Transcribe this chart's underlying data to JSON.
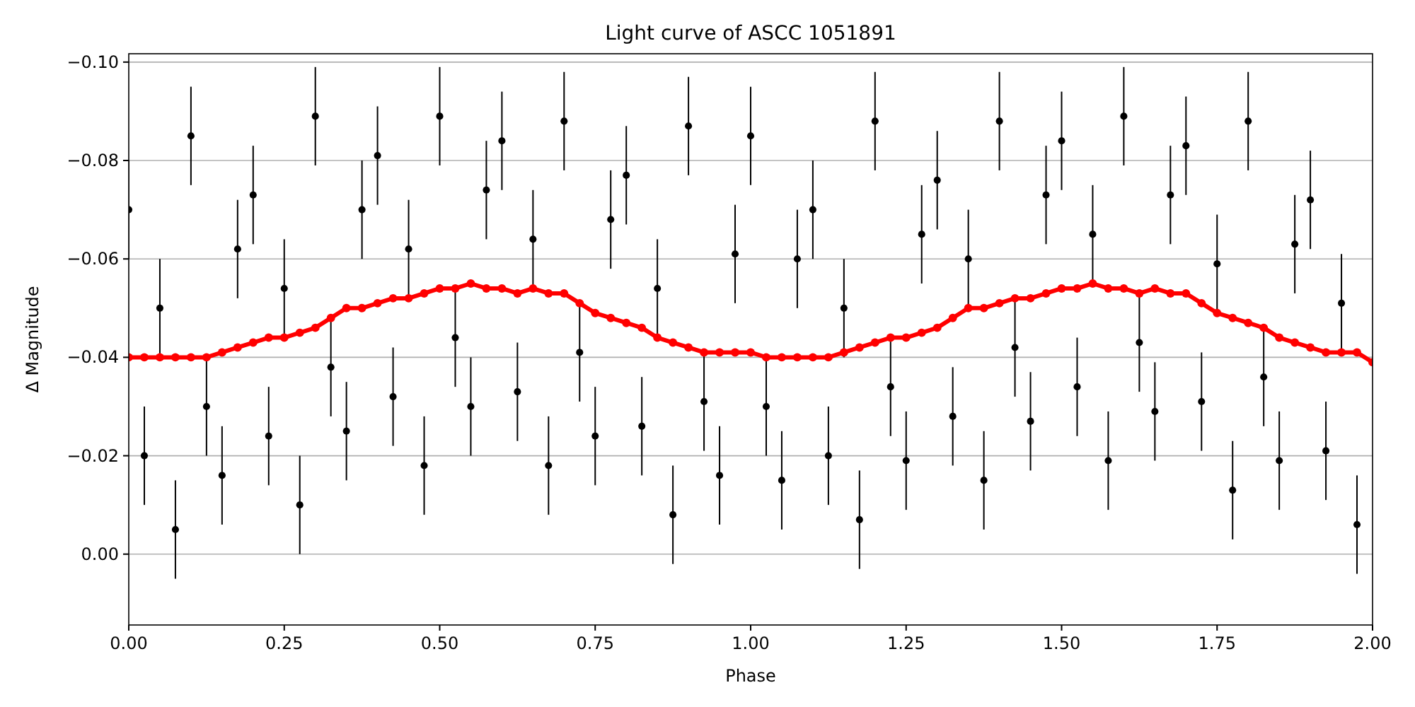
{
  "chart_data": {
    "type": "scatter",
    "title": "Light curve of ASCC 1051891",
    "xlabel": "Phase",
    "ylabel": "Δ Magnitude",
    "xlim": [
      0,
      2
    ],
    "ylim": [
      0.0144,
      -0.1017
    ],
    "xticks": [
      {
        "value": 0,
        "label": "0.00"
      },
      {
        "value": 0.25,
        "label": "0.25"
      },
      {
        "value": 0.5,
        "label": "0.50"
      },
      {
        "value": 0.75,
        "label": "0.75"
      },
      {
        "value": 1,
        "label": "1.00"
      },
      {
        "value": 1.25,
        "label": "1.25"
      },
      {
        "value": 1.5,
        "label": "1.50"
      },
      {
        "value": 1.75,
        "label": "1.75"
      },
      {
        "value": 2,
        "label": "2.00"
      }
    ],
    "yticks": [
      {
        "value": -0.1,
        "label": "−0.10"
      },
      {
        "value": -0.08,
        "label": "−0.08"
      },
      {
        "value": -0.06,
        "label": "−0.06"
      },
      {
        "value": -0.04,
        "label": "−0.04"
      },
      {
        "value": -0.02,
        "label": "−0.02"
      },
      {
        "value": 0,
        "label": "0.00"
      }
    ],
    "grid": "y",
    "series": [
      {
        "color": "#000000",
        "marker": "circle",
        "x": [
          0,
          0.025,
          0.05,
          0.075,
          0.1,
          0.125,
          0.15,
          0.175,
          0.2,
          0.225,
          0.25,
          0.275,
          0.3,
          0.325,
          0.35,
          0.375,
          0.4,
          0.425,
          0.45,
          0.475,
          0.5,
          0.525,
          0.55,
          0.575,
          0.6,
          0.625,
          0.65,
          0.675,
          0.7,
          0.725,
          0.75,
          0.775,
          0.8,
          0.825,
          0.85,
          0.875,
          0.9,
          0.925,
          0.95,
          0.975,
          1,
          1.025,
          1.05,
          1.075,
          1.1,
          1.125,
          1.15,
          1.175,
          1.2,
          1.225,
          1.25,
          1.275,
          1.3,
          1.325,
          1.35,
          1.375,
          1.4,
          1.425,
          1.45,
          1.475,
          1.5,
          1.525,
          1.55,
          1.575,
          1.6,
          1.625,
          1.65,
          1.675,
          1.7,
          1.725,
          1.75,
          1.775,
          1.8,
          1.825,
          1.85,
          1.875,
          1.9,
          1.925,
          1.95,
          1.975
        ],
        "values": [
          -0.07,
          -0.02,
          -0.05,
          -0.005,
          -0.085,
          -0.03,
          -0.016,
          -0.062,
          -0.073,
          -0.024,
          -0.054,
          -0.01,
          -0.089,
          -0.038,
          -0.025,
          -0.07,
          -0.081,
          -0.032,
          -0.062,
          -0.018,
          -0.089,
          -0.044,
          -0.03,
          -0.074,
          -0.084,
          -0.033,
          -0.064,
          -0.018,
          -0.088,
          -0.041,
          -0.024,
          -0.068,
          -0.077,
          -0.026,
          -0.054,
          -0.008,
          -0.087,
          -0.031,
          -0.016,
          -0.061,
          -0.085,
          -0.03,
          -0.015,
          -0.06,
          -0.07,
          -0.02,
          -0.05,
          -0.007,
          -0.088,
          -0.034,
          -0.019,
          -0.065,
          -0.076,
          -0.028,
          -0.06,
          -0.015,
          -0.088,
          -0.042,
          -0.027,
          -0.073,
          -0.084,
          -0.034,
          -0.065,
          -0.019,
          -0.089,
          -0.043,
          -0.029,
          -0.073,
          -0.083,
          -0.031,
          -0.059,
          -0.013,
          -0.088,
          -0.036,
          -0.019,
          -0.063,
          -0.072,
          -0.021,
          -0.051,
          -0.006
        ],
        "errors": [
          0.01,
          0.01,
          0.01,
          0.01,
          0.01,
          0.01,
          0.01,
          0.01,
          0.01,
          0.01,
          0.01,
          0.01,
          0.01,
          0.01,
          0.01,
          0.01,
          0.01,
          0.01,
          0.01,
          0.01,
          0.01,
          0.01,
          0.01,
          0.01,
          0.01,
          0.01,
          0.01,
          0.01,
          0.01,
          0.01,
          0.01,
          0.01,
          0.01,
          0.01,
          0.01,
          0.01,
          0.01,
          0.01,
          0.01,
          0.01,
          0.01,
          0.01,
          0.01,
          0.01,
          0.01,
          0.01,
          0.01,
          0.01,
          0.01,
          0.01,
          0.01,
          0.01,
          0.01,
          0.01,
          0.01,
          0.01,
          0.01,
          0.01,
          0.01,
          0.01,
          0.01,
          0.01,
          0.01,
          0.01,
          0.01,
          0.01,
          0.01,
          0.01,
          0.01,
          0.01,
          0.01,
          0.01,
          0.01,
          0.01,
          0.01,
          0.01,
          0.01,
          0.01,
          0.01,
          0.01
        ]
      },
      {
        "type": "line",
        "color": "#ff0000",
        "marker": "circle",
        "x": [
          0,
          0.025,
          0.05,
          0.075,
          0.1,
          0.125,
          0.15,
          0.175,
          0.2,
          0.225,
          0.25,
          0.275,
          0.3,
          0.325,
          0.35,
          0.375,
          0.4,
          0.425,
          0.45,
          0.475,
          0.5,
          0.525,
          0.55,
          0.575,
          0.6,
          0.625,
          0.65,
          0.675,
          0.7,
          0.725,
          0.75,
          0.775,
          0.8,
          0.825,
          0.85,
          0.875,
          0.9,
          0.925,
          0.95,
          0.975,
          1,
          1.025,
          1.05,
          1.075,
          1.1,
          1.125,
          1.15,
          1.175,
          1.2,
          1.225,
          1.25,
          1.275,
          1.3,
          1.325,
          1.35,
          1.375,
          1.4,
          1.425,
          1.45,
          1.475,
          1.5,
          1.525,
          1.55,
          1.575,
          1.6,
          1.625,
          1.65,
          1.675,
          1.7,
          1.725,
          1.75,
          1.775,
          1.8,
          1.825,
          1.85,
          1.875,
          1.9,
          1.925,
          1.95,
          1.975,
          2
        ],
        "values": [
          -0.04,
          -0.04,
          -0.04,
          -0.04,
          -0.04,
          -0.04,
          -0.041,
          -0.042,
          -0.043,
          -0.044,
          -0.044,
          -0.045,
          -0.046,
          -0.048,
          -0.05,
          -0.05,
          -0.051,
          -0.052,
          -0.052,
          -0.053,
          -0.054,
          -0.054,
          -0.055,
          -0.054,
          -0.054,
          -0.053,
          -0.054,
          -0.053,
          -0.053,
          -0.051,
          -0.049,
          -0.048,
          -0.047,
          -0.046,
          -0.044,
          -0.043,
          -0.042,
          -0.041,
          -0.041,
          -0.041,
          -0.041,
          -0.04,
          -0.04,
          -0.04,
          -0.04,
          -0.04,
          -0.041,
          -0.042,
          -0.043,
          -0.044,
          -0.044,
          -0.045,
          -0.046,
          -0.048,
          -0.05,
          -0.05,
          -0.051,
          -0.052,
          -0.052,
          -0.053,
          -0.054,
          -0.054,
          -0.055,
          -0.054,
          -0.054,
          -0.053,
          -0.054,
          -0.053,
          -0.053,
          -0.051,
          -0.049,
          -0.048,
          -0.047,
          -0.046,
          -0.044,
          -0.043,
          -0.042,
          -0.041,
          -0.041,
          -0.041,
          -0.039
        ]
      }
    ]
  }
}
